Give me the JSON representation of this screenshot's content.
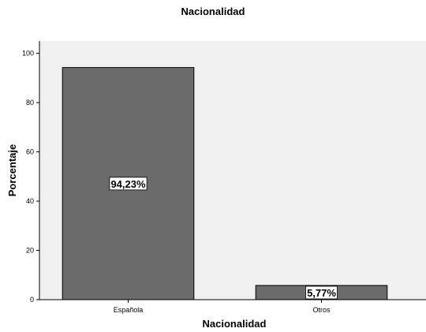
{
  "chart_data": {
    "type": "bar",
    "title": "Nacionalidad",
    "xlabel": "Nacionalidad",
    "ylabel": "Porcentaje",
    "categories": [
      "Española",
      "Otros"
    ],
    "values": [
      94.23,
      5.77
    ],
    "data_labels": [
      "94,23%",
      "5,77%"
    ],
    "ylim": [
      0,
      105
    ],
    "yticks": [
      "0",
      "20",
      "40",
      "60",
      "80",
      "100"
    ],
    "grid": false,
    "legend": "none",
    "colors": {
      "plot_background": "#f0f0f0",
      "bar_fill": "#6b6b6b",
      "bar_stroke": "#000000",
      "label_box": "#ffffff"
    }
  }
}
